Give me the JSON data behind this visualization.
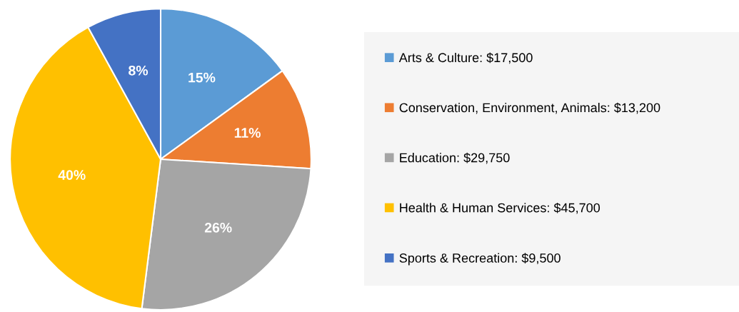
{
  "chart_data": {
    "type": "pie",
    "categories": [
      "Arts & Culture: $17,500",
      "Conservation, Environment, Animals: $13,200",
      "Education: $29,750",
      "Health & Human Services: $45,700",
      "Sports & Recreation: $9,500"
    ],
    "values": [
      15,
      11,
      26,
      40,
      8
    ],
    "value_labels": [
      "15%",
      "11%",
      "26%",
      "40%",
      "8%"
    ],
    "colors": [
      "#5b9bd5",
      "#ed7d31",
      "#a5a5a5",
      "#ffc000",
      "#4472c4"
    ],
    "legend": "right"
  }
}
